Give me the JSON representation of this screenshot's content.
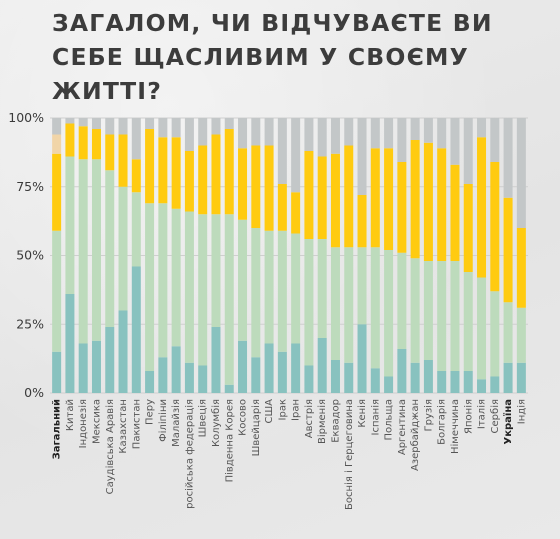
{
  "title": "Загалом, чи відчуваєте ви себе щасливим у своєму житті?",
  "chart_data": {
    "type": "bar",
    "stacked": true,
    "percent_stacked": true,
    "categories": [
      "Загальний",
      "Китай",
      "Індонезія",
      "Мексика",
      "Саудівська Аравія",
      "Казахстан",
      "Пакистан",
      "Перу",
      "Філіпіни",
      "Малайзія",
      "російська федерація",
      "Швеція",
      "Колумбія",
      "Південна Корея",
      "Косово",
      "Швейцарія",
      "США",
      "Ірак",
      "Іран",
      "Австрія",
      "Вірменія",
      "Еквадор",
      "Боснія і Герцеговина",
      "Кенія",
      "Іспанія",
      "Польща",
      "Аргентина",
      "Азербайджан",
      "Грузія",
      "Болгарія",
      "Німеччина",
      "Японія",
      "Італія",
      "Сербія",
      "Україна",
      "Індія"
    ],
    "bold_categories": [
      "Загальний",
      "Україна"
    ],
    "yticks": [
      "0%",
      "25%",
      "50%",
      "75%",
      "100%"
    ],
    "ylim": [
      0,
      100
    ],
    "grid": true,
    "colors": [
      "#88c2bf",
      "#bddbbc",
      "#ffcb10",
      "#f1d5a8",
      "#d8b9a4",
      "#b97d65",
      "#c3c7c8"
    ],
    "series": [
      {
        "values": [
          15,
          36,
          18,
          19,
          24,
          30,
          46,
          8,
          13,
          17,
          11,
          10,
          24,
          3,
          19,
          13,
          18,
          15,
          18,
          10,
          20,
          12,
          11,
          25,
          9,
          6,
          16,
          11,
          12,
          8,
          8,
          8,
          5,
          6,
          11,
          11
        ]
      },
      {
        "values": [
          44,
          50,
          67,
          66,
          57,
          45,
          27,
          61,
          56,
          50,
          55,
          55,
          41,
          62,
          44,
          47,
          41,
          44,
          40,
          46,
          36,
          41,
          42,
          28,
          44,
          46,
          35,
          38,
          36,
          40,
          40,
          36,
          37,
          31,
          22,
          20
        ]
      },
      {
        "values": [
          28,
          12,
          12,
          11,
          13,
          19,
          12,
          27,
          24,
          26,
          22,
          25,
          29,
          31,
          26,
          30,
          31,
          17,
          15,
          32,
          30,
          34,
          37,
          19,
          36,
          37,
          33,
          43,
          43,
          41,
          35,
          32,
          51,
          47,
          38,
          29
        ]
      },
      {
        "values": [
          7,
          0,
          0,
          0,
          0,
          0,
          0,
          0,
          0,
          0,
          0,
          0,
          0,
          0,
          0,
          0,
          0,
          0,
          0,
          0,
          0,
          0,
          0,
          0,
          0,
          0,
          0,
          0,
          0,
          0,
          0,
          0,
          0,
          0,
          0,
          0
        ]
      },
      {
        "values": [
          0,
          0,
          0,
          0,
          0,
          0,
          0,
          0,
          0,
          0,
          0,
          0,
          0,
          0,
          0,
          0,
          0,
          0,
          0,
          0,
          0,
          0,
          0,
          0,
          0,
          0,
          0,
          0,
          0,
          0,
          0,
          0,
          0,
          0,
          0,
          0
        ]
      },
      {
        "values": [
          0,
          0,
          0,
          0,
          0,
          0,
          0,
          0,
          0,
          0,
          0,
          0,
          0,
          0,
          0,
          0,
          0,
          0,
          0,
          0,
          0,
          0,
          0,
          0,
          0,
          0,
          0,
          0,
          0,
          0,
          0,
          0,
          0,
          0,
          0,
          0
        ]
      },
      {
        "values": [
          0,
          0,
          0,
          0,
          0,
          0,
          0,
          0,
          0,
          0,
          0,
          0,
          0,
          0,
          0,
          0,
          0,
          0,
          0,
          0,
          0,
          0,
          0,
          0,
          0,
          0,
          0,
          0,
          0,
          0,
          0,
          0,
          0,
          0,
          0,
          0
        ]
      }
    ]
  }
}
